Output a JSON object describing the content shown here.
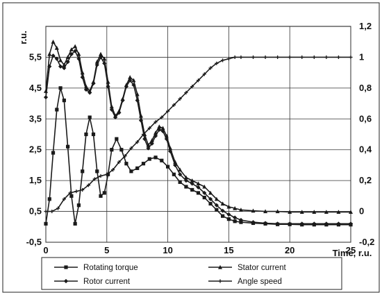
{
  "chart_data": {
    "type": "line",
    "title": "",
    "xlabel": "Time, r.u.",
    "ylabel_left": "r.u.",
    "ylabel_right": "",
    "xlim": [
      0,
      25
    ],
    "ylim_left": [
      -0.5,
      6.5
    ],
    "ylim_right": [
      -0.2,
      1.2
    ],
    "x_ticks": [
      "0",
      "5",
      "10",
      "15",
      "20",
      "25"
    ],
    "y_ticks_left": [
      "-0,5",
      "0,5",
      "1,5",
      "2,5",
      "3,5",
      "4,5",
      "5,5"
    ],
    "y_ticks_right": [
      "-0,2",
      "0",
      "0,2",
      "0,4",
      "0,6",
      "0,8",
      "1",
      "1,2"
    ],
    "grid": true,
    "legend_position": "bottom",
    "series": [
      {
        "name": "Rotating torque",
        "axis": "left",
        "marker": "square",
        "color": "#1a1a1a",
        "points": [
          [
            0,
            0.1
          ],
          [
            0.3,
            0.9
          ],
          [
            0.6,
            2.4
          ],
          [
            0.9,
            3.8
          ],
          [
            1.2,
            4.5
          ],
          [
            1.5,
            4.1
          ],
          [
            1.8,
            2.6
          ],
          [
            2.1,
            1.0
          ],
          [
            2.4,
            0.1
          ],
          [
            2.7,
            0.7
          ],
          [
            3.0,
            1.8
          ],
          [
            3.3,
            3.0
          ],
          [
            3.6,
            3.55
          ],
          [
            3.9,
            3.0
          ],
          [
            4.2,
            1.8
          ],
          [
            4.5,
            1.0
          ],
          [
            4.8,
            1.1
          ],
          [
            5.1,
            1.7
          ],
          [
            5.4,
            2.5
          ],
          [
            5.8,
            2.85
          ],
          [
            6.2,
            2.5
          ],
          [
            6.6,
            2.05
          ],
          [
            7.0,
            1.8
          ],
          [
            7.5,
            1.9
          ],
          [
            8.0,
            2.05
          ],
          [
            8.5,
            2.2
          ],
          [
            9.0,
            2.25
          ],
          [
            9.5,
            2.15
          ],
          [
            10.0,
            1.95
          ],
          [
            10.5,
            1.7
          ],
          [
            11.0,
            1.45
          ],
          [
            11.5,
            1.3
          ],
          [
            12.0,
            1.2
          ],
          [
            12.5,
            1.1
          ],
          [
            13.0,
            0.95
          ],
          [
            13.5,
            0.75
          ],
          [
            14.0,
            0.55
          ],
          [
            14.5,
            0.35
          ],
          [
            15.0,
            0.25
          ],
          [
            15.5,
            0.18
          ],
          [
            16.0,
            0.15
          ],
          [
            17.0,
            0.12
          ],
          [
            18.0,
            0.1
          ],
          [
            19.0,
            0.08
          ],
          [
            20.0,
            0.08
          ],
          [
            21.0,
            0.07
          ],
          [
            22.0,
            0.07
          ],
          [
            23.0,
            0.07
          ],
          [
            24.0,
            0.07
          ],
          [
            25.0,
            0.07
          ]
        ]
      },
      {
        "name": "Stator current",
        "axis": "left",
        "marker": "triangle",
        "color": "#1a1a1a",
        "points": [
          [
            0,
            4.4
          ],
          [
            0.3,
            5.6
          ],
          [
            0.6,
            6.0
          ],
          [
            0.9,
            5.8
          ],
          [
            1.2,
            5.4
          ],
          [
            1.5,
            5.25
          ],
          [
            1.8,
            5.5
          ],
          [
            2.1,
            5.75
          ],
          [
            2.4,
            5.85
          ],
          [
            2.7,
            5.6
          ],
          [
            3.0,
            5.0
          ],
          [
            3.3,
            4.55
          ],
          [
            3.6,
            4.4
          ],
          [
            3.9,
            4.7
          ],
          [
            4.2,
            5.35
          ],
          [
            4.5,
            5.6
          ],
          [
            4.8,
            5.45
          ],
          [
            5.1,
            4.7
          ],
          [
            5.4,
            3.9
          ],
          [
            5.7,
            3.6
          ],
          [
            6.0,
            3.75
          ],
          [
            6.3,
            4.15
          ],
          [
            6.6,
            4.6
          ],
          [
            6.9,
            4.85
          ],
          [
            7.2,
            4.75
          ],
          [
            7.5,
            4.3
          ],
          [
            7.8,
            3.6
          ],
          [
            8.1,
            3.0
          ],
          [
            8.4,
            2.65
          ],
          [
            8.7,
            2.8
          ],
          [
            9.0,
            3.05
          ],
          [
            9.3,
            3.25
          ],
          [
            9.6,
            3.2
          ],
          [
            9.9,
            2.95
          ],
          [
            10.2,
            2.55
          ],
          [
            10.6,
            2.1
          ],
          [
            11.0,
            1.85
          ],
          [
            11.5,
            1.6
          ],
          [
            12.0,
            1.5
          ],
          [
            12.5,
            1.4
          ],
          [
            13.0,
            1.3
          ],
          [
            13.5,
            1.1
          ],
          [
            14.0,
            0.9
          ],
          [
            14.5,
            0.75
          ],
          [
            15.0,
            0.65
          ],
          [
            15.5,
            0.6
          ],
          [
            16.0,
            0.55
          ],
          [
            17.0,
            0.52
          ],
          [
            18.0,
            0.5
          ],
          [
            19.0,
            0.5
          ],
          [
            20.0,
            0.48
          ],
          [
            21.0,
            0.48
          ],
          [
            22.0,
            0.48
          ],
          [
            23.0,
            0.48
          ],
          [
            24.0,
            0.48
          ],
          [
            25.0,
            0.48
          ]
        ]
      },
      {
        "name": "Rotor current",
        "axis": "left",
        "marker": "diamond",
        "color": "#1a1a1a",
        "points": [
          [
            0,
            4.2
          ],
          [
            0.3,
            5.2
          ],
          [
            0.6,
            5.55
          ],
          [
            0.9,
            5.45
          ],
          [
            1.2,
            5.2
          ],
          [
            1.5,
            5.15
          ],
          [
            1.8,
            5.35
          ],
          [
            2.1,
            5.6
          ],
          [
            2.4,
            5.7
          ],
          [
            2.7,
            5.45
          ],
          [
            3.0,
            4.85
          ],
          [
            3.3,
            4.45
          ],
          [
            3.6,
            4.35
          ],
          [
            3.9,
            4.65
          ],
          [
            4.2,
            5.25
          ],
          [
            4.5,
            5.5
          ],
          [
            4.8,
            5.3
          ],
          [
            5.1,
            4.55
          ],
          [
            5.4,
            3.8
          ],
          [
            5.7,
            3.55
          ],
          [
            6.0,
            3.7
          ],
          [
            6.3,
            4.1
          ],
          [
            6.6,
            4.55
          ],
          [
            6.9,
            4.75
          ],
          [
            7.2,
            4.6
          ],
          [
            7.5,
            4.1
          ],
          [
            7.8,
            3.45
          ],
          [
            8.1,
            2.85
          ],
          [
            8.4,
            2.55
          ],
          [
            8.7,
            2.7
          ],
          [
            9.0,
            2.95
          ],
          [
            9.3,
            3.15
          ],
          [
            9.6,
            3.1
          ],
          [
            9.9,
            2.85
          ],
          [
            10.2,
            2.45
          ],
          [
            10.6,
            2.0
          ],
          [
            11.0,
            1.7
          ],
          [
            11.5,
            1.5
          ],
          [
            12.0,
            1.4
          ],
          [
            12.5,
            1.28
          ],
          [
            13.0,
            1.1
          ],
          [
            13.5,
            0.9
          ],
          [
            14.0,
            0.7
          ],
          [
            14.5,
            0.52
          ],
          [
            15.0,
            0.4
          ],
          [
            15.5,
            0.3
          ],
          [
            16.0,
            0.22
          ],
          [
            17.0,
            0.15
          ],
          [
            18.0,
            0.12
          ],
          [
            19.0,
            0.1
          ],
          [
            20.0,
            0.1
          ],
          [
            21.0,
            0.1
          ],
          [
            22.0,
            0.1
          ],
          [
            23.0,
            0.1
          ],
          [
            24.0,
            0.1
          ],
          [
            25.0,
            0.1
          ]
        ]
      },
      {
        "name": "Angle speed",
        "axis": "right",
        "marker": "cross",
        "color": "#1a1a1a",
        "points": [
          [
            0,
            0.0
          ],
          [
            0.5,
            0.0
          ],
          [
            1.0,
            0.02
          ],
          [
            1.5,
            0.08
          ],
          [
            2.0,
            0.12
          ],
          [
            2.5,
            0.13
          ],
          [
            3.0,
            0.14
          ],
          [
            3.5,
            0.17
          ],
          [
            4.0,
            0.21
          ],
          [
            4.5,
            0.23
          ],
          [
            5.0,
            0.24
          ],
          [
            5.5,
            0.27
          ],
          [
            6.0,
            0.32
          ],
          [
            6.5,
            0.36
          ],
          [
            7.0,
            0.41
          ],
          [
            7.5,
            0.45
          ],
          [
            8.0,
            0.5
          ],
          [
            8.5,
            0.54
          ],
          [
            9.0,
            0.58
          ],
          [
            9.5,
            0.61
          ],
          [
            10.0,
            0.65
          ],
          [
            10.5,
            0.69
          ],
          [
            11.0,
            0.73
          ],
          [
            11.5,
            0.77
          ],
          [
            12.0,
            0.81
          ],
          [
            12.5,
            0.85
          ],
          [
            13.0,
            0.89
          ],
          [
            13.5,
            0.93
          ],
          [
            14.0,
            0.96
          ],
          [
            14.5,
            0.98
          ],
          [
            15.0,
            0.99
          ],
          [
            15.5,
            1.0
          ],
          [
            16.0,
            1.0
          ],
          [
            17.0,
            1.0
          ],
          [
            18.0,
            1.0
          ],
          [
            19.0,
            1.0
          ],
          [
            20.0,
            1.0
          ],
          [
            21.0,
            1.0
          ],
          [
            22.0,
            1.0
          ],
          [
            23.0,
            1.0
          ],
          [
            24.0,
            1.0
          ],
          [
            25.0,
            1.0
          ]
        ]
      }
    ]
  }
}
